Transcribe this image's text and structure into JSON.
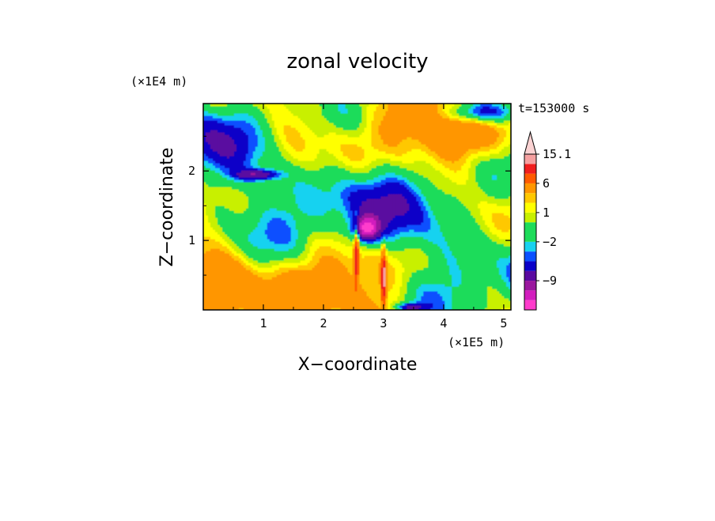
{
  "chart_data": {
    "type": "heatmap",
    "title": "zonal velocity",
    "xlabel": "X−coordinate",
    "ylabel": "Z−coordinate",
    "x_unit": "(×1E5 m)",
    "y_unit": "(×1E4 m)",
    "time_label": "t=153000 s",
    "xlim": [
      0,
      5.12
    ],
    "ylim": [
      0,
      2.97
    ],
    "x_ticks": [
      1,
      2,
      3,
      4,
      5
    ],
    "y_ticks": [
      1,
      2
    ],
    "colorbar": {
      "levels": [
        -15,
        -12,
        -9,
        -6,
        -4,
        -3,
        -2,
        -1,
        0,
        1,
        2,
        3,
        6,
        9,
        12,
        15.1
      ],
      "colors": [
        "#ff3ccc",
        "#d21ebe",
        "#9a189e",
        "#5a0aa0",
        "#0a00c8",
        "#0a50ff",
        "#18d2f0",
        "#1edc5a",
        "#1edc5a",
        "#c8f000",
        "#ffff00",
        "#ffc800",
        "#ff9600",
        "#ff5a00",
        "#f01e1e",
        "#f5a0a0",
        "#fad2d2"
      ],
      "labels": [
        {
          "value": -9,
          "text": "−9"
        },
        {
          "value": -2,
          "text": "−2"
        },
        {
          "value": 1,
          "text": "1"
        },
        {
          "value": 6,
          "text": "6"
        },
        {
          "value": 15.1,
          "text": "15.1"
        }
      ]
    }
  }
}
